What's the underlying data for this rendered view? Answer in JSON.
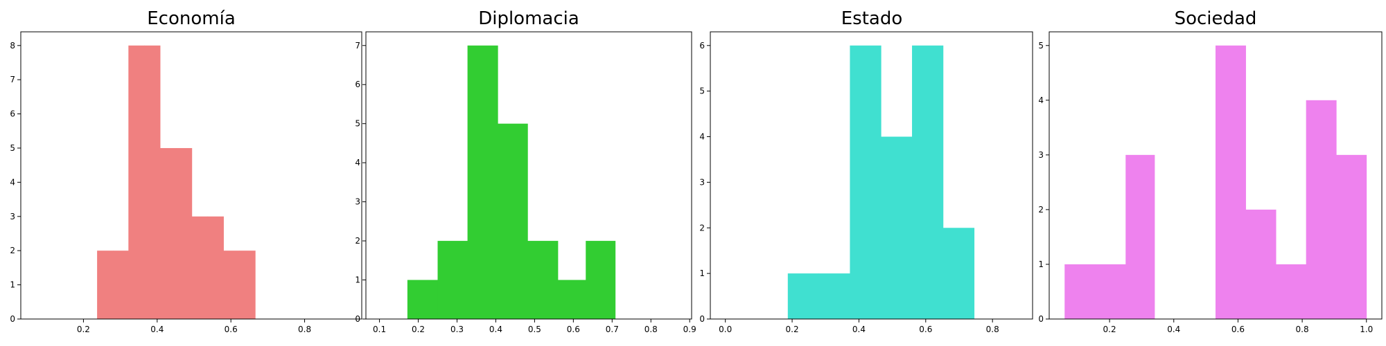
{
  "chart_data": [
    {
      "type": "bar",
      "title": "Economía",
      "color": "#f08080",
      "bins": [
        {
          "x0": 0.237,
          "x1": 0.28,
          "value": 2
        },
        {
          "x0": 0.28,
          "x1": 0.322,
          "value": 2
        },
        {
          "x0": 0.322,
          "x1": 0.365,
          "value": 8
        },
        {
          "x0": 0.365,
          "x1": 0.408,
          "value": 8
        },
        {
          "x0": 0.408,
          "x1": 0.451,
          "value": 5
        },
        {
          "x0": 0.451,
          "x1": 0.494,
          "value": 5
        },
        {
          "x0": 0.494,
          "x1": 0.537,
          "value": 3
        },
        {
          "x0": 0.537,
          "x1": 0.58,
          "value": 3
        },
        {
          "x0": 0.58,
          "x1": 0.623,
          "value": 2
        },
        {
          "x0": 0.623,
          "x1": 0.666,
          "value": 2
        }
      ],
      "xlim": [
        0.03,
        0.955
      ],
      "ylim": [
        0,
        8.4
      ],
      "xticks": [
        0.2,
        0.4,
        0.6,
        0.8
      ],
      "xtick_labels": [
        "0.2",
        "0.4",
        "0.6",
        "0.8"
      ],
      "yticks": [
        0,
        1,
        2,
        3,
        4,
        5,
        6,
        7,
        8
      ],
      "ytick_labels": [
        "0",
        "1",
        "2",
        "3",
        "4",
        "5",
        "6",
        "7",
        "8"
      ]
    },
    {
      "type": "bar",
      "title": "Diplomacia",
      "color": "#32cd32",
      "bins": [
        {
          "x0": 0.172,
          "x1": 0.225,
          "value": 1
        },
        {
          "x0": 0.225,
          "x1": 0.25,
          "value": 1
        },
        {
          "x0": 0.25,
          "x1": 0.327,
          "value": 2
        },
        {
          "x0": 0.327,
          "x1": 0.405,
          "value": 7
        },
        {
          "x0": 0.405,
          "x1": 0.482,
          "value": 5
        },
        {
          "x0": 0.482,
          "x1": 0.56,
          "value": 2
        },
        {
          "x0": 0.56,
          "x1": 0.632,
          "value": 1
        },
        {
          "x0": 0.632,
          "x1": 0.708,
          "value": 2
        }
      ],
      "xlim": [
        0.065,
        0.905
      ],
      "ylim": [
        0,
        7.35
      ],
      "xticks": [
        0.1,
        0.2,
        0.3,
        0.4,
        0.5,
        0.6,
        0.7,
        0.8,
        0.9
      ],
      "xtick_labels": [
        "0.1",
        "0.2",
        "0.3",
        "0.4",
        "0.5",
        "0.6",
        "0.7",
        "0.8",
        "0.9"
      ],
      "yticks": [
        0,
        1,
        2,
        3,
        4,
        5,
        6,
        7
      ],
      "ytick_labels": [
        "0",
        "1",
        "2",
        "3",
        "4",
        "5",
        "6",
        "7"
      ]
    },
    {
      "type": "bar",
      "title": "Estado",
      "color": "#40e0d0",
      "bins": [
        {
          "x0": 0.187,
          "x1": 0.28,
          "value": 1
        },
        {
          "x0": 0.28,
          "x1": 0.373,
          "value": 1
        },
        {
          "x0": 0.373,
          "x1": 0.466,
          "value": 6
        },
        {
          "x0": 0.466,
          "x1": 0.559,
          "value": 4
        },
        {
          "x0": 0.559,
          "x1": 0.652,
          "value": 6
        },
        {
          "x0": 0.652,
          "x1": 0.745,
          "value": 2
        }
      ],
      "xlim": [
        -0.045,
        0.92
      ],
      "ylim": [
        0,
        6.3
      ],
      "xticks": [
        0.0,
        0.2,
        0.4,
        0.6,
        0.8
      ],
      "xtick_labels": [
        "0.0",
        "0.2",
        "0.4",
        "0.6",
        "0.8"
      ],
      "yticks": [
        0,
        1,
        2,
        3,
        4,
        5,
        6
      ],
      "ytick_labels": [
        "0",
        "1",
        "2",
        "3",
        "4",
        "5",
        "6"
      ]
    },
    {
      "type": "bar",
      "title": "Sociedad",
      "color": "#ee82ee",
      "bins": [
        {
          "x0": 0.06,
          "x1": 0.155,
          "value": 1
        },
        {
          "x0": 0.155,
          "x1": 0.25,
          "value": 1
        },
        {
          "x0": 0.25,
          "x1": 0.34,
          "value": 3
        },
        {
          "x0": 0.53,
          "x1": 0.624,
          "value": 5
        },
        {
          "x0": 0.624,
          "x1": 0.718,
          "value": 2
        },
        {
          "x0": 0.718,
          "x1": 0.812,
          "value": 1
        },
        {
          "x0": 0.812,
          "x1": 0.906,
          "value": 4
        },
        {
          "x0": 0.906,
          "x1": 1.0,
          "value": 3
        }
      ],
      "xlim": [
        0.012,
        1.048
      ],
      "ylim": [
        0,
        5.25
      ],
      "xticks": [
        0.2,
        0.4,
        0.6,
        0.8,
        1.0
      ],
      "xtick_labels": [
        "0.2",
        "0.4",
        "0.6",
        "0.8",
        "1.0"
      ],
      "yticks": [
        0,
        1,
        2,
        3,
        4,
        5
      ],
      "ytick_labels": [
        "0",
        "1",
        "2",
        "3",
        "4",
        "5"
      ]
    }
  ]
}
